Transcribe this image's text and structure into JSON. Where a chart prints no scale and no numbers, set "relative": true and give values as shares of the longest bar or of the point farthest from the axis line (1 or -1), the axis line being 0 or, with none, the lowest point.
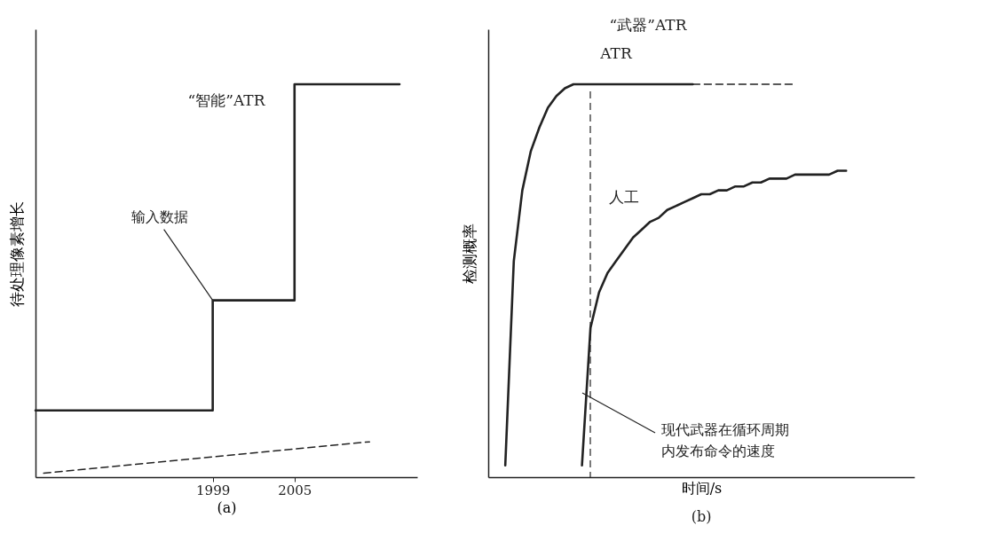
{
  "chart_data": [
    {
      "type": "step",
      "title": "“智能”ATR",
      "xlabel": "(a)",
      "ylabel": "待处理像素增长",
      "relative": true,
      "xlim": [
        1986,
        2014
      ],
      "xticks": [
        1999,
        2005
      ],
      "annotations": [
        {
          "text": "输入数据",
          "x": 1999,
          "y": 0.45
        }
      ],
      "series": [
        {
          "color": "#222222",
          "x": [
            1986,
            1999,
            2005,
            2012.7
          ],
          "values": [
            0.17,
            0.45,
            1,
            1
          ]
        },
        {
          "type": "line",
          "color": "#222222",
          "line_style": "dashed",
          "x": [
            1986.6,
            2010.5
          ],
          "values": [
            0.01,
            0.09
          ]
        }
      ]
    },
    {
      "type": "line",
      "title": "“武器”ATR",
      "xlabel": "时间/s",
      "ylabel": "检测概率",
      "relative": true,
      "annotations": [
        "(b)",
        "现代武器在循环周期内发布命令的速度"
      ],
      "categories": [
        null,
        null,
        null,
        null,
        null,
        null,
        null,
        null,
        null,
        null,
        null,
        null,
        null,
        null,
        null,
        null,
        null,
        null,
        null,
        null,
        null,
        null,
        null,
        null,
        null,
        null,
        null,
        null,
        null,
        null,
        null,
        null,
        null,
        null,
        null,
        null,
        null,
        null,
        null,
        null,
        null
      ],
      "series": [
        {
          "name": "ATR",
          "color": "#222222",
          "values": [
            0.03,
            0.55,
            0.73,
            0.83,
            0.89,
            0.94,
            0.97,
            0.99,
            1,
            1,
            1,
            1,
            1,
            1,
            1,
            1,
            1,
            1,
            1,
            1,
            1,
            1,
            1,
            null,
            null,
            null,
            null,
            null,
            null,
            null,
            null,
            null,
            null,
            null,
            null,
            null,
            null,
            null,
            null,
            null,
            null
          ]
        },
        {
          "color": "#222222",
          "line_style": "dashed",
          "values": [
            null,
            null,
            null,
            null,
            null,
            null,
            null,
            null,
            null,
            null,
            null,
            null,
            null,
            null,
            null,
            null,
            null,
            null,
            null,
            null,
            null,
            null,
            1,
            1,
            1,
            1,
            1,
            1,
            1,
            1,
            1,
            1,
            1,
            1,
            1,
            null,
            null,
            null,
            null,
            null,
            null
          ]
        },
        {
          "name": "人工",
          "color": "#222222",
          "values": [
            null,
            null,
            null,
            null,
            null,
            null,
            null,
            null,
            null,
            0.03,
            0.38,
            0.47,
            0.52,
            0.55,
            0.58,
            0.61,
            0.63,
            0.65,
            0.66,
            0.68,
            0.69,
            0.7,
            0.71,
            0.72,
            0.72,
            0.73,
            0.73,
            0.74,
            0.74,
            0.75,
            0.75,
            0.76,
            0.76,
            0.76,
            0.77,
            0.77,
            0.77,
            0.77,
            0.77,
            0.78,
            0.78
          ]
        }
      ]
    }
  ]
}
